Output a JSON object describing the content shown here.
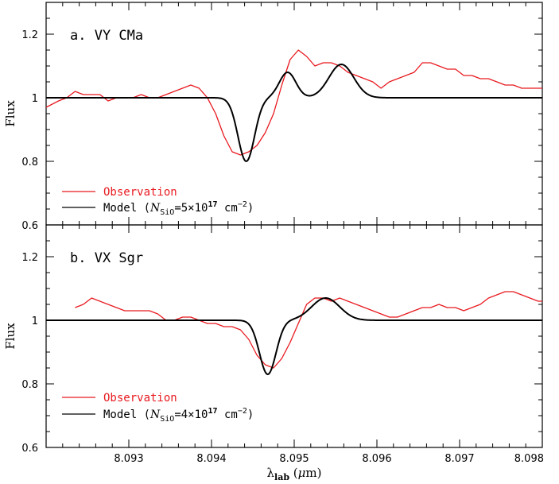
{
  "chart_data": [
    {
      "type": "line",
      "title": "a. VY CMa",
      "ylabel": "Flux",
      "xlim": [
        8.092,
        8.098
      ],
      "ylim": [
        0.6,
        1.3
      ],
      "yticks": [
        "0.6",
        "0.8",
        "1",
        "1.2"
      ],
      "legend": {
        "placement": "bottom-left",
        "observation_label": "Observation",
        "model_prefix": "Model (",
        "model_N": "N",
        "model_sub": "SiO",
        "model_mid": "=5×10",
        "model_exp": "17",
        "model_unit": " cm",
        "model_unit_exp": "−2",
        "model_suffix": ")"
      },
      "series": [
        {
          "name": "Observation",
          "color": "#e8191f",
          "x": [
            8.092,
            8.09215,
            8.09225,
            8.09235,
            8.09245,
            8.09255,
            8.09265,
            8.09275,
            8.09285,
            8.09295,
            8.09305,
            8.09315,
            8.09325,
            8.09335,
            8.09345,
            8.09355,
            8.09365,
            8.09375,
            8.09385,
            8.09395,
            8.09405,
            8.09415,
            8.09425,
            8.09435,
            8.09445,
            8.09455,
            8.09465,
            8.09475,
            8.09485,
            8.09495,
            8.09505,
            8.09515,
            8.09525,
            8.09535,
            8.09545,
            8.09555,
            8.09565,
            8.09575,
            8.09585,
            8.09595,
            8.09605,
            8.09615,
            8.09625,
            8.09635,
            8.09645,
            8.09655,
            8.09665,
            8.09675,
            8.09685,
            8.09695,
            8.09705,
            8.09715,
            8.09725,
            8.09735,
            8.09745,
            8.09755,
            8.09765,
            8.09775,
            8.09785,
            8.09795,
            8.098
          ],
          "y": [
            0.97,
            0.99,
            1.0,
            1.02,
            1.01,
            1.01,
            1.01,
            0.99,
            1.0,
            1.0,
            1.0,
            1.01,
            1.0,
            1.0,
            1.01,
            1.02,
            1.03,
            1.04,
            1.03,
            1.0,
            0.95,
            0.88,
            0.83,
            0.82,
            0.83,
            0.85,
            0.89,
            0.95,
            1.04,
            1.12,
            1.15,
            1.13,
            1.1,
            1.11,
            1.11,
            1.1,
            1.08,
            1.07,
            1.06,
            1.05,
            1.03,
            1.05,
            1.06,
            1.07,
            1.08,
            1.11,
            1.11,
            1.1,
            1.09,
            1.09,
            1.07,
            1.07,
            1.06,
            1.06,
            1.05,
            1.04,
            1.04,
            1.03,
            1.03,
            1.03,
            1.03
          ]
        },
        {
          "name": "Model",
          "color": "#000000",
          "components": [
            {
              "amp": -0.2,
              "center": 8.09442,
              "sigma": 0.0001
            },
            {
              "amp": 0.08,
              "center": 8.09492,
              "sigma": 0.0001
            },
            {
              "amp": 0.105,
              "center": 8.09557,
              "sigma": 0.00015
            }
          ]
        }
      ]
    },
    {
      "type": "line",
      "title": "b. VX Sgr",
      "ylabel": "Flux",
      "xlabel_main": "λ",
      "xlabel_sub": "lab",
      "xlabel_unit_open": " (",
      "xlabel_mu": "μ",
      "xlabel_unit_close": "m)",
      "xlim": [
        8.092,
        8.098
      ],
      "ylim": [
        0.6,
        1.3
      ],
      "yticks": [
        "0.6",
        "0.8",
        "1",
        "1.2"
      ],
      "xticks": [
        "8.093",
        "8.094",
        "8.095",
        "8.096",
        "8.097",
        "8.098"
      ],
      "legend": {
        "placement": "bottom-left",
        "observation_label": "Observation",
        "model_prefix": "Model (",
        "model_N": "N",
        "model_sub": "SiO",
        "model_mid": "=4×10",
        "model_exp": "17",
        "model_unit": " cm",
        "model_unit_exp": "−2",
        "model_suffix": ")"
      },
      "series": [
        {
          "name": "Observation",
          "color": "#e8191f",
          "x": [
            8.09235,
            8.09245,
            8.09255,
            8.09265,
            8.09275,
            8.09285,
            8.09295,
            8.09305,
            8.09315,
            8.09325,
            8.09335,
            8.09345,
            8.09355,
            8.09365,
            8.09375,
            8.09385,
            8.09395,
            8.09405,
            8.09415,
            8.09425,
            8.09435,
            8.09445,
            8.09455,
            8.09465,
            8.09475,
            8.09485,
            8.09495,
            8.09505,
            8.09515,
            8.09525,
            8.09535,
            8.09545,
            8.09555,
            8.09565,
            8.09575,
            8.09585,
            8.09595,
            8.09605,
            8.09615,
            8.09625,
            8.09635,
            8.09645,
            8.09655,
            8.09665,
            8.09675,
            8.09685,
            8.09695,
            8.09705,
            8.09715,
            8.09725,
            8.09735,
            8.09745,
            8.09755,
            8.09765,
            8.09775,
            8.09785,
            8.09795,
            8.098
          ],
          "y": [
            1.04,
            1.05,
            1.07,
            1.06,
            1.05,
            1.04,
            1.03,
            1.03,
            1.03,
            1.03,
            1.02,
            1.0,
            1.0,
            1.01,
            1.01,
            1.0,
            0.99,
            0.99,
            0.98,
            0.98,
            0.97,
            0.94,
            0.89,
            0.86,
            0.85,
            0.88,
            0.93,
            0.99,
            1.05,
            1.07,
            1.07,
            1.06,
            1.07,
            1.06,
            1.05,
            1.04,
            1.03,
            1.02,
            1.01,
            1.01,
            1.02,
            1.03,
            1.04,
            1.04,
            1.05,
            1.04,
            1.04,
            1.03,
            1.04,
            1.05,
            1.07,
            1.08,
            1.09,
            1.09,
            1.08,
            1.07,
            1.06,
            1.06
          ]
        },
        {
          "name": "Model",
          "color": "#000000",
          "components": [
            {
              "amp": -0.17,
              "center": 8.09468,
              "sigma": 0.0001
            },
            {
              "amp": 0.07,
              "center": 8.09538,
              "sigma": 0.00017
            }
          ]
        }
      ]
    }
  ]
}
